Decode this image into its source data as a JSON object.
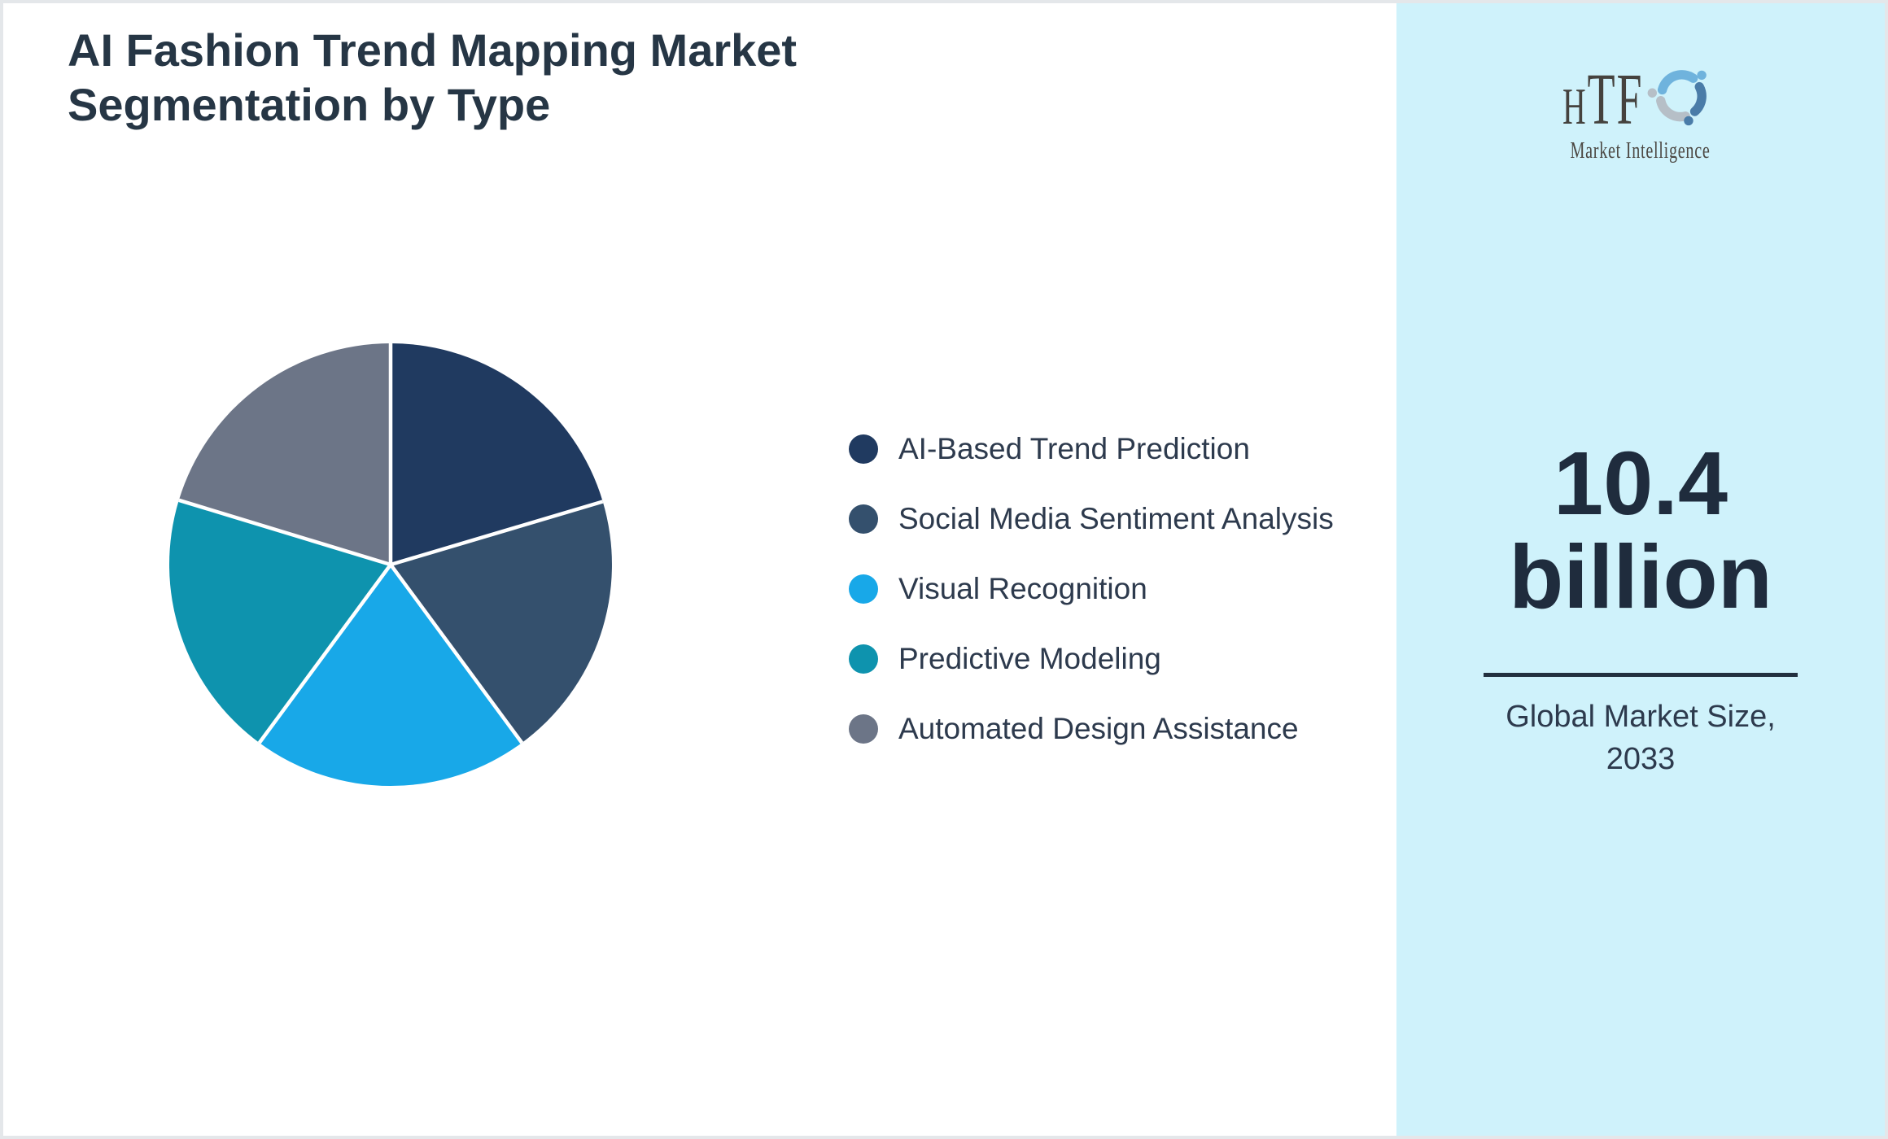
{
  "title": "AI Fashion Trend Mapping Market Segmentation by Type",
  "chart_data": {
    "type": "pie",
    "title": "AI Fashion Trend Mapping Market Segmentation by Type",
    "categories": [
      "AI-Based Trend Prediction",
      "Social Media Sentiment Analysis",
      "Visual Recognition",
      "Predictive Modeling",
      "Automated Design Assistance"
    ],
    "values": [
      20.4,
      19.5,
      20.2,
      19.6,
      20.3
    ],
    "value_unit": "percent share (estimated from slice angles; no data labels shown)",
    "colors": [
      "#203a60",
      "#34506d",
      "#18a8e8",
      "#0e93ae",
      "#6c7587"
    ],
    "start_angle_deg": 0,
    "direction": "clockwise",
    "slice_labels_shown": false,
    "legend_position": "right",
    "separator_color": "#ffffff"
  },
  "sidebar": {
    "logo": {
      "text": "HTF",
      "subtext": "Market Intelligence",
      "text_color": "#45423e",
      "subtext_color": "#4c4843",
      "swirl_colors": [
        "#6fb3dd",
        "#b6bfc7",
        "#4a7ca8"
      ]
    },
    "market_size": {
      "value": "10.4",
      "unit": "billion"
    },
    "caption_lines": [
      "Global Market Size,",
      "2033"
    ]
  },
  "colors": {
    "sidebar_bg": "#cff2fb",
    "canvas_bg": "#ffffff",
    "frame_border": "#e4e7ea",
    "title_text": "#263645",
    "legend_text": "#2d3a4d",
    "market_text": "#1f2c3d",
    "divider": "#22303f"
  }
}
